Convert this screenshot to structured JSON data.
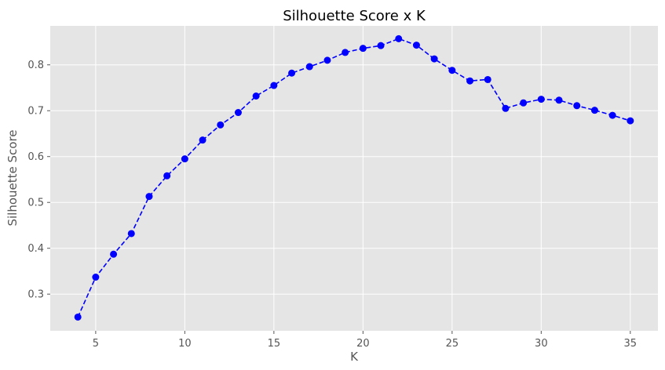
{
  "chart_data": {
    "type": "line",
    "title": "Silhouette Score x K",
    "xlabel": "K",
    "ylabel": "Silhouette Score",
    "xlim": [
      2.45,
      36.55
    ],
    "ylim": [
      0.22,
      0.885
    ],
    "xticks": [
      5,
      10,
      15,
      20,
      25,
      30,
      35
    ],
    "yticks": [
      0.3,
      0.4,
      0.5,
      0.6,
      0.7,
      0.8
    ],
    "grid": true,
    "line_style": "dashed",
    "marker": "circle",
    "color": "#0000ff",
    "background": "#e5e5e5",
    "x": [
      4,
      5,
      6,
      7,
      8,
      9,
      10,
      11,
      12,
      13,
      14,
      15,
      16,
      17,
      18,
      19,
      20,
      21,
      22,
      23,
      24,
      25,
      26,
      27,
      28,
      29,
      30,
      31,
      32,
      33,
      34,
      35
    ],
    "values": [
      0.25,
      0.337,
      0.387,
      0.432,
      0.513,
      0.558,
      0.595,
      0.636,
      0.669,
      0.696,
      0.732,
      0.755,
      0.782,
      0.796,
      0.81,
      0.827,
      0.836,
      0.842,
      0.857,
      0.843,
      0.813,
      0.788,
      0.765,
      0.768,
      0.705,
      0.717,
      0.725,
      0.723,
      0.711,
      0.701,
      0.69,
      0.678
    ]
  }
}
